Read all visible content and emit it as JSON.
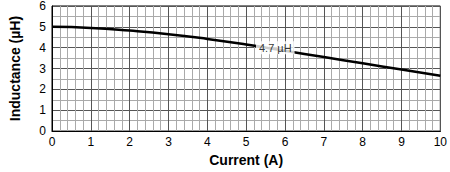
{
  "chart_data": {
    "type": "line",
    "x_label": "Current (A)",
    "y_label": "Inductance (µH)",
    "x": [
      0,
      1,
      2,
      3,
      4,
      5,
      6,
      7,
      8,
      9,
      10
    ],
    "values": [
      5.0,
      4.95,
      4.82,
      4.65,
      4.42,
      4.15,
      3.85,
      3.55,
      3.25,
      2.95,
      2.65
    ],
    "color": "#000000",
    "xlim": [
      0,
      10
    ],
    "xticks": [
      0,
      1,
      2,
      3,
      4,
      5,
      6,
      7,
      8,
      9,
      10
    ],
    "ylim": [
      0,
      6
    ],
    "yticks": [
      0,
      1,
      2,
      3,
      4,
      5,
      6
    ],
    "grid": true,
    "annotations": [
      {
        "text": "4.7 µH",
        "x": 5.75,
        "y": 4.0
      }
    ]
  }
}
